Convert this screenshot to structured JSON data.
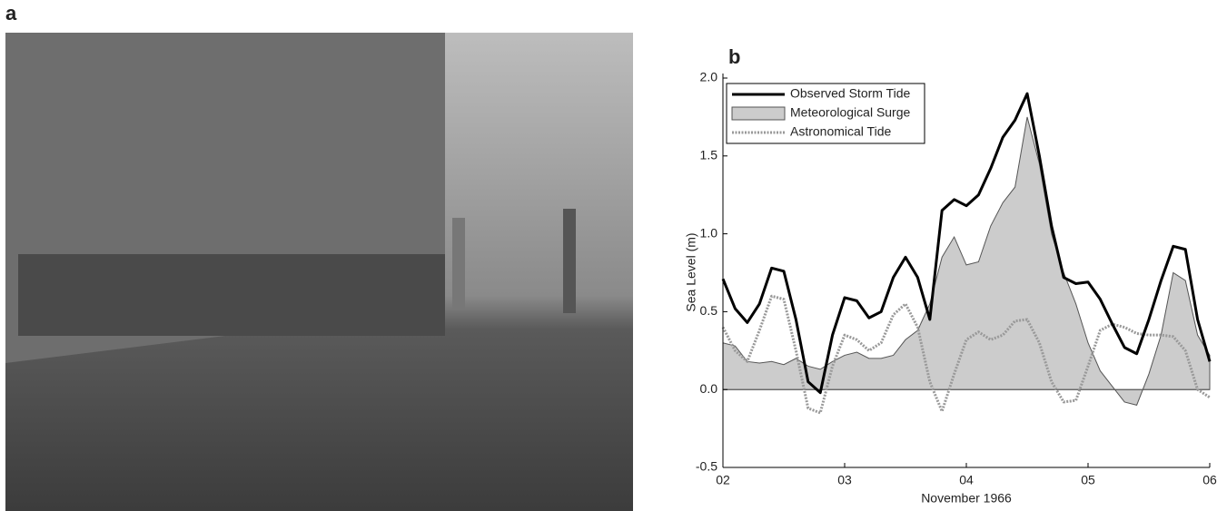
{
  "panel_a": {
    "label": "a"
  },
  "chart_data": {
    "type": "line",
    "panel_label": "b",
    "x_label": "November 1966",
    "y_label": "Sea Level (m)",
    "xlim": [
      2,
      6
    ],
    "ylim": [
      -0.5,
      2.0
    ],
    "xticks": [
      {
        "value": 2,
        "label": "02"
      },
      {
        "value": 3,
        "label": "03"
      },
      {
        "value": 4,
        "label": "04"
      },
      {
        "value": 5,
        "label": "05"
      },
      {
        "value": 6,
        "label": "06"
      }
    ],
    "yticks": [
      -0.5,
      {
        "value": 0,
        "label": "0.0"
      },
      0.5,
      {
        "value": 1,
        "label": "1.0"
      },
      1.5,
      {
        "value": 2,
        "label": "2.0"
      }
    ],
    "legend": "upper left",
    "x": [
      2.0,
      2.1,
      2.2,
      2.3,
      2.4,
      2.5,
      2.6,
      2.7,
      2.8,
      2.9,
      3.0,
      3.1,
      3.2,
      3.3,
      3.4,
      3.5,
      3.6,
      3.7,
      3.8,
      3.9,
      4.0,
      4.1,
      4.2,
      4.3,
      4.4,
      4.5,
      4.6,
      4.7,
      4.8,
      4.9,
      5.0,
      5.1,
      5.2,
      5.3,
      5.4,
      5.5,
      5.6,
      5.7,
      5.8,
      5.9,
      6.0
    ],
    "series": [
      {
        "name": "Observed Storm Tide",
        "type": "line",
        "color": "#000000",
        "width": 3,
        "dash": "none",
        "values": [
          0.71,
          0.52,
          0.43,
          0.55,
          0.78,
          0.76,
          0.45,
          0.05,
          -0.02,
          0.35,
          0.59,
          0.57,
          0.46,
          0.5,
          0.72,
          0.85,
          0.72,
          0.45,
          1.15,
          1.22,
          1.18,
          1.25,
          1.42,
          1.62,
          1.73,
          1.9,
          1.5,
          1.05,
          0.72,
          0.68,
          0.69,
          0.58,
          0.42,
          0.27,
          0.23,
          0.45,
          0.7,
          0.92,
          0.9,
          0.45,
          0.18
        ]
      },
      {
        "name": "Meteorological Surge",
        "type": "area",
        "color": "#cccccc",
        "width": 1,
        "dash": "none",
        "values": [
          0.3,
          0.28,
          0.18,
          0.17,
          0.18,
          0.16,
          0.2,
          0.15,
          0.13,
          0.18,
          0.22,
          0.24,
          0.2,
          0.2,
          0.22,
          0.32,
          0.38,
          0.55,
          0.85,
          0.98,
          0.8,
          0.82,
          1.05,
          1.2,
          1.3,
          1.75,
          1.45,
          1.0,
          0.75,
          0.55,
          0.3,
          0.12,
          0.02,
          -0.08,
          -0.1,
          0.1,
          0.35,
          0.75,
          0.7,
          0.35,
          0.22
        ]
      },
      {
        "name": "Astronomical Tide",
        "type": "line",
        "color": "#999999",
        "width": 3,
        "dash": "2,1.5",
        "values": [
          0.4,
          0.25,
          0.18,
          0.38,
          0.6,
          0.58,
          0.25,
          -0.12,
          -0.15,
          0.15,
          0.35,
          0.32,
          0.25,
          0.3,
          0.48,
          0.55,
          0.4,
          0.05,
          -0.14,
          0.1,
          0.32,
          0.37,
          0.32,
          0.35,
          0.44,
          0.45,
          0.3,
          0.05,
          -0.08,
          -0.07,
          0.15,
          0.38,
          0.42,
          0.4,
          0.36,
          0.35,
          0.35,
          0.34,
          0.25,
          0.0,
          -0.05
        ]
      }
    ]
  }
}
